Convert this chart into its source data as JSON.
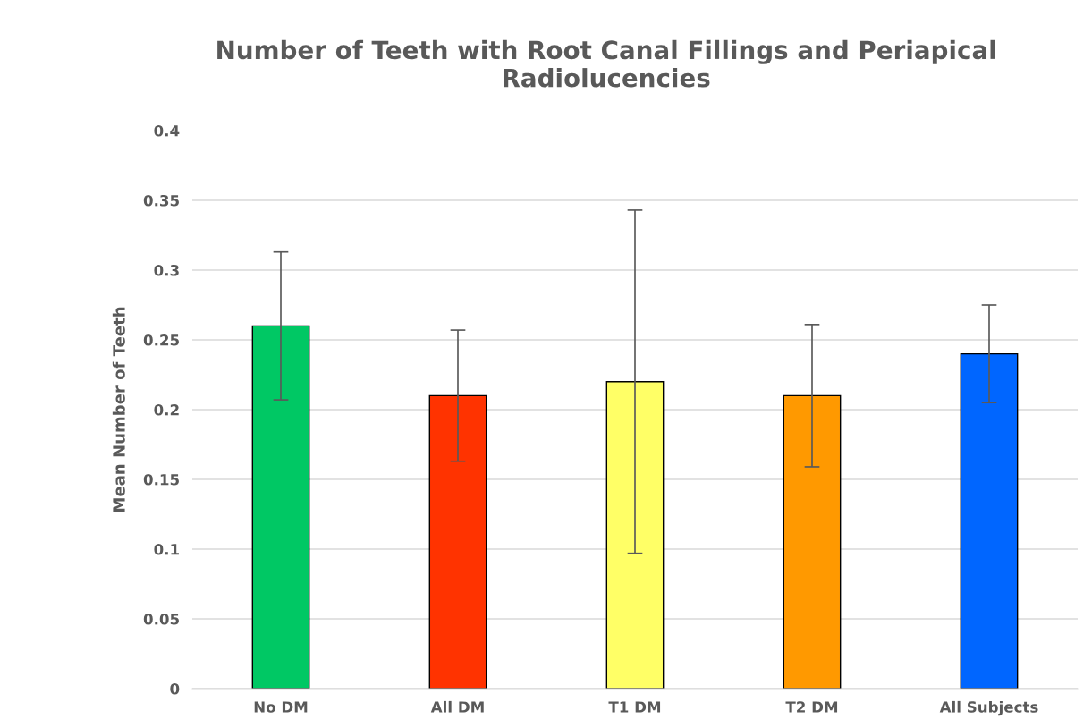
{
  "chart_data": {
    "type": "bar",
    "title": "Number of Teeth with Root Canal Fillings and Periapical Radiolucencies",
    "ylabel": "Mean Number of Teeth",
    "categories": [
      "No DM",
      "All DM",
      "T1 DM",
      "T2 DM",
      "All Subjects"
    ],
    "values": [
      0.26,
      0.21,
      0.22,
      0.21,
      0.24
    ],
    "errors": [
      0.053,
      0.047,
      0.123,
      0.051,
      0.035
    ],
    "colors": [
      "#00c864",
      "#ff3300",
      "#ffff66",
      "#ff9900",
      "#0066ff"
    ],
    "ylim": [
      0,
      0.4
    ],
    "yticks": [
      0,
      0.05,
      0.1,
      0.15,
      0.2,
      0.25,
      0.3,
      0.35,
      0.4
    ],
    "grid": "y"
  }
}
